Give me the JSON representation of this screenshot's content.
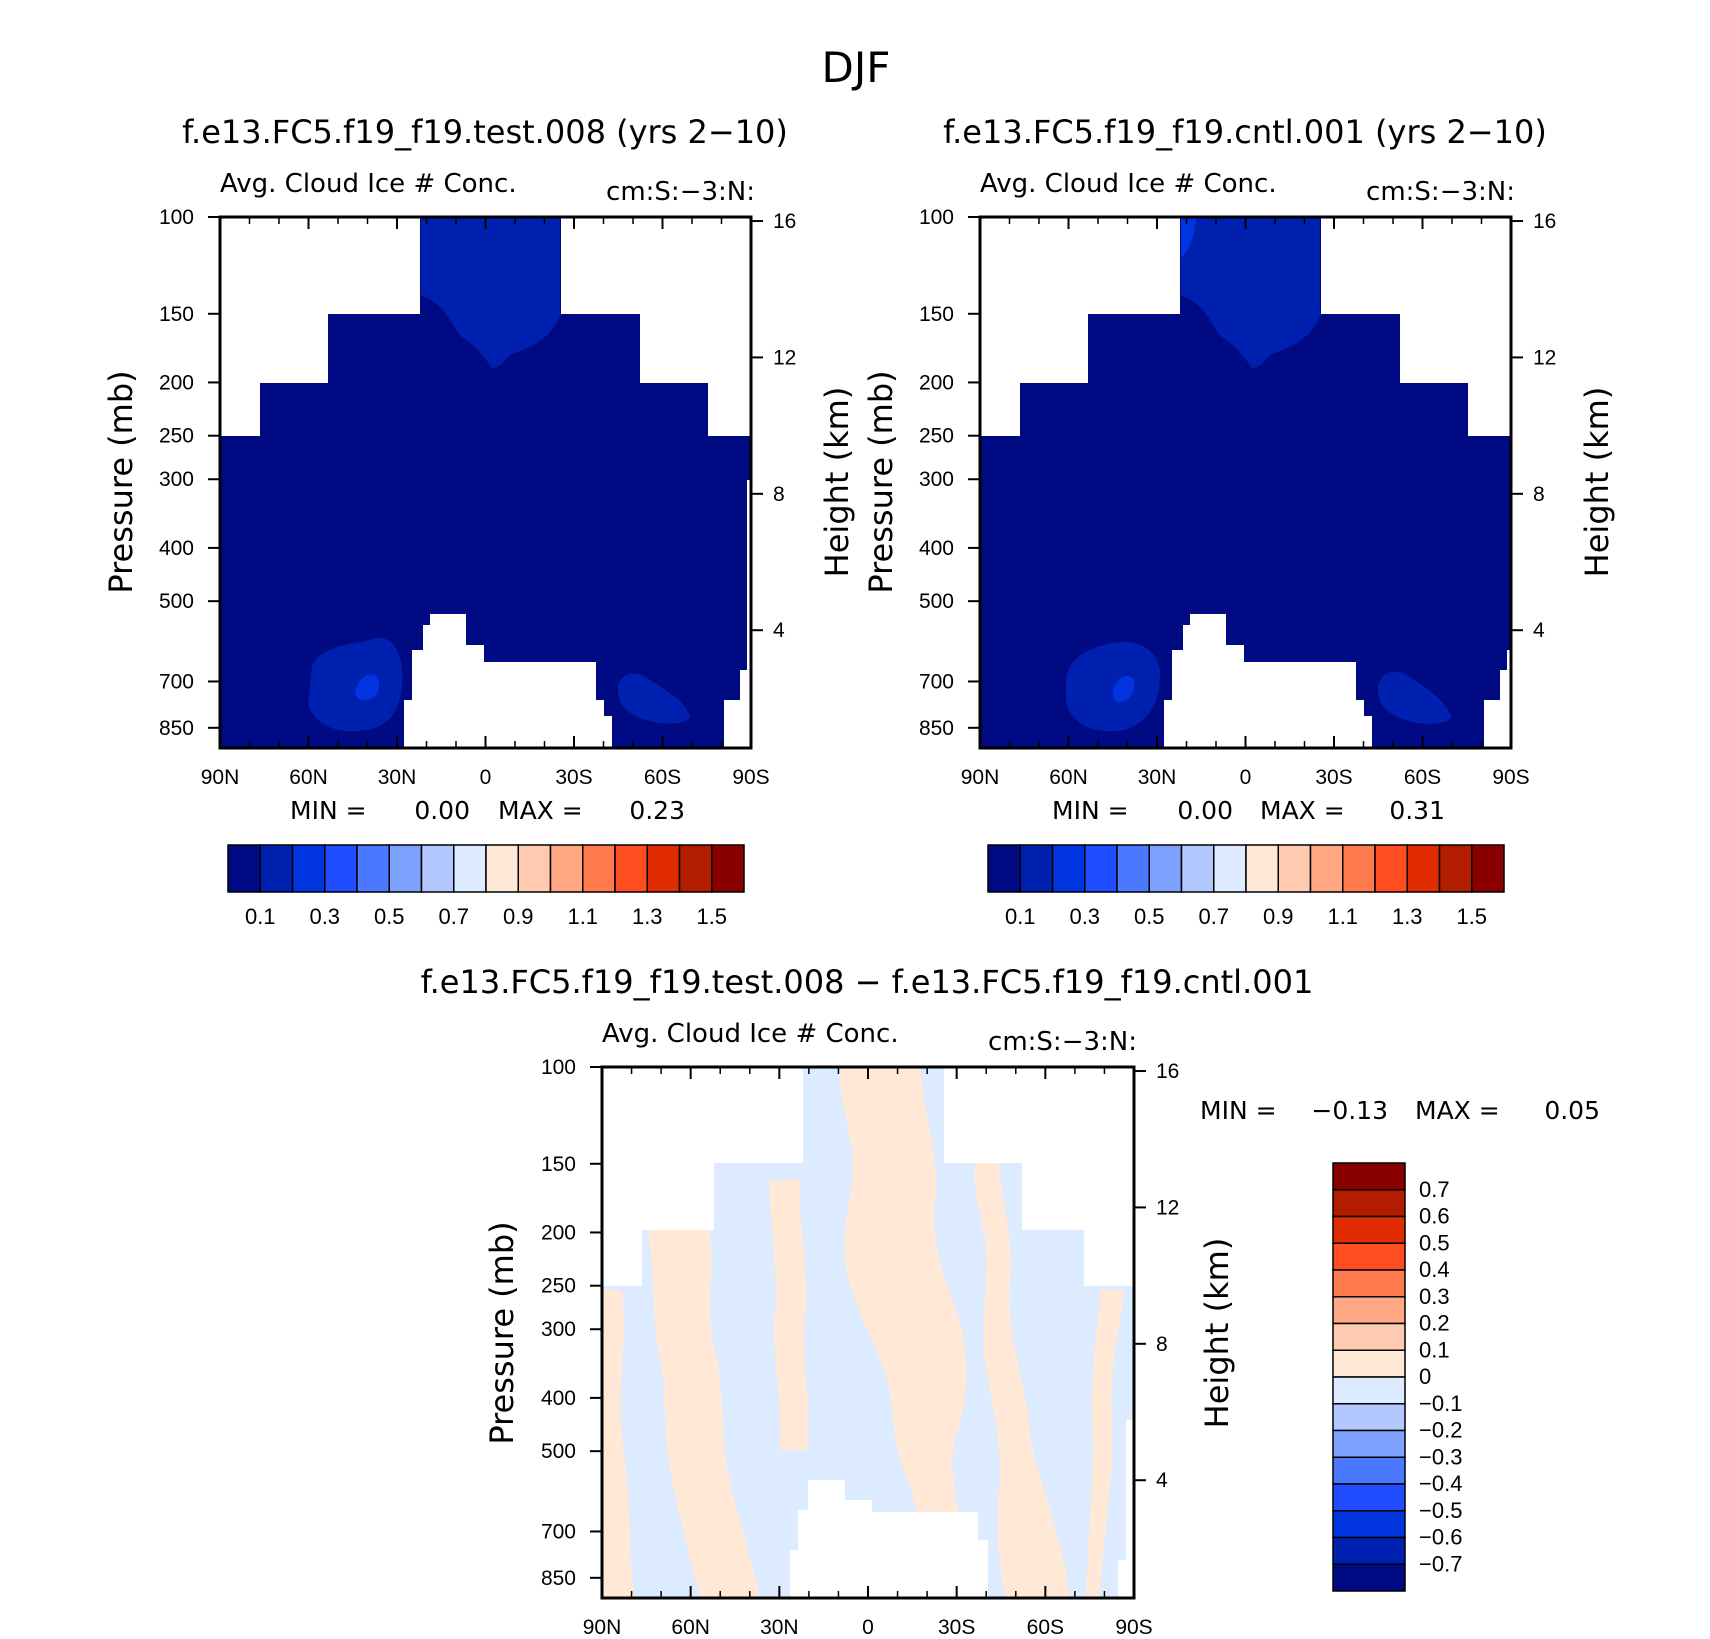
{
  "figure_title": "DJF",
  "colors": {
    "main_palette": [
      "#000a83",
      "#0020b0",
      "#0035e0",
      "#1f4dff",
      "#4a79ff",
      "#7fa2ff",
      "#b3c8ff",
      "#dcebff",
      "#ffe8d6",
      "#ffcbb0",
      "#ffa783",
      "#ff7a4d",
      "#ff4d21",
      "#e02c00",
      "#b21d00",
      "#8a0000"
    ],
    "diff_palette": [
      "#000a83",
      "#0020b0",
      "#0035e0",
      "#1f4dff",
      "#4a79ff",
      "#7fa2ff",
      "#b3c8ff",
      "#dcebff",
      "#ffe8d6",
      "#ffcbb0",
      "#ffa783",
      "#ff7a4d",
      "#ff4d21",
      "#e02c00",
      "#b21d00",
      "#8a0000"
    ]
  },
  "chart_data": [
    {
      "type": "heatmap",
      "title": "f.e13.FC5.f19_f19.test.008 (yrs 2−10)",
      "left_string": "Avg. Cloud Ice # Conc.",
      "right_string": "cm:S:−3:N:",
      "ylabel": "Pressure (mb)",
      "y2label": "Height (km)",
      "x_ticks": [
        "90N",
        "60N",
        "30N",
        "0",
        "30S",
        "60S",
        "90S"
      ],
      "y_ticks": [
        "100",
        "150",
        "200",
        "250",
        "300",
        "400",
        "500",
        "700",
        "850"
      ],
      "y2_ticks": [
        "16",
        "12",
        "8",
        "4"
      ],
      "min_label": "MIN =",
      "min_value": "0.00",
      "max_label": "MAX =",
      "max_value": "0.23",
      "colorbar_labels": [
        "0.1",
        "0.3",
        "0.5",
        "0.7",
        "0.9",
        "1.1",
        "1.3",
        "1.5"
      ],
      "value_ranges": {
        "background": "0.0-0.1",
        "upper_tropics": "0.1-0.2",
        "lower_midlat": "0.1-0.2",
        "max": 0.23
      }
    },
    {
      "type": "heatmap",
      "title": "f.e13.FC5.f19_f19.cntl.001 (yrs 2−10)",
      "left_string": "Avg. Cloud Ice # Conc.",
      "right_string": "cm:S:−3:N:",
      "ylabel": "Pressure (mb)",
      "y2label": "Height (km)",
      "x_ticks": [
        "90N",
        "60N",
        "30N",
        "0",
        "30S",
        "60S",
        "90S"
      ],
      "y_ticks": [
        "100",
        "150",
        "200",
        "250",
        "300",
        "400",
        "500",
        "700",
        "850"
      ],
      "y2_ticks": [
        "16",
        "12",
        "8",
        "4"
      ],
      "min_label": "MIN =",
      "min_value": "0.00",
      "max_label": "MAX =",
      "max_value": "0.31",
      "colorbar_labels": [
        "0.1",
        "0.3",
        "0.5",
        "0.7",
        "0.9",
        "1.1",
        "1.3",
        "1.5"
      ],
      "value_ranges": {
        "background": "0.0-0.1",
        "upper_tropics": "0.1-0.3",
        "lower_midlat": "0.1-0.3",
        "max": 0.31
      }
    },
    {
      "type": "heatmap",
      "title": "f.e13.FC5.f19_f19.test.008 − f.e13.FC5.f19_f19.cntl.001",
      "left_string": "Avg. Cloud Ice # Conc.",
      "right_string": "cm:S:−3:N:",
      "ylabel": "Pressure (mb)",
      "y2label": "Height (km)",
      "x_ticks": [
        "90N",
        "60N",
        "30N",
        "0",
        "30S",
        "60S",
        "90S"
      ],
      "y_ticks": [
        "100",
        "150",
        "200",
        "250",
        "300",
        "400",
        "500",
        "700",
        "850"
      ],
      "y2_ticks": [
        "16",
        "12",
        "8",
        "4"
      ],
      "min_label": "MIN =",
      "min_value": "−0.13",
      "max_label": "MAX =",
      "max_value": "0.05",
      "colorbar_labels": [
        "0.7",
        "0.6",
        "0.5",
        "0.4",
        "0.3",
        "0.2",
        "0.1",
        "0",
        "−0.1",
        "−0.2",
        "−0.3",
        "−0.4",
        "−0.5",
        "−0.6",
        "−0.7"
      ],
      "value_ranges": {
        "positive": "0 to 0.1",
        "negative": "−0.1 to 0"
      }
    }
  ]
}
